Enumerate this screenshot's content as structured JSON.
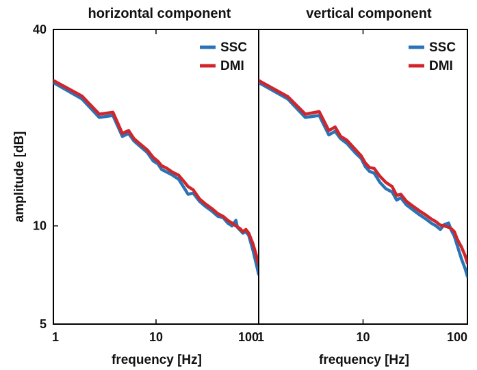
{
  "chart_data": [
    {
      "type": "line",
      "title": "horizontal component",
      "xlabel": "frequency [Hz]",
      "ylabel": "amplitude [dB]",
      "xscale": "log",
      "yscale": "log",
      "xlim": [
        1,
        100
      ],
      "ylim": [
        5,
        40
      ],
      "xticks": [
        1,
        10,
        100
      ],
      "xtick_labels": [
        "1",
        "10",
        "100"
      ],
      "yticks": [
        5,
        10,
        40
      ],
      "ytick_labels": [
        "5",
        "10",
        "40"
      ],
      "legend_position": "top-right",
      "grid": false,
      "series": [
        {
          "name": "SSC",
          "color": "#2a74b5",
          "points": [
            [
              1,
              27.5
            ],
            [
              1.9,
              24.5
            ],
            [
              2.8,
              21.5
            ],
            [
              3.8,
              21.8
            ],
            [
              4.7,
              18.8
            ],
            [
              5.4,
              19.2
            ],
            [
              6.1,
              18.2
            ],
            [
              6.9,
              17.6
            ],
            [
              8.2,
              16.8
            ],
            [
              9.4,
              15.8
            ],
            [
              10.4,
              15.5
            ],
            [
              11.3,
              14.9
            ],
            [
              12.8,
              14.6
            ],
            [
              14.5,
              14.3
            ],
            [
              16.6,
              13.9
            ],
            [
              19,
              13.0
            ],
            [
              20.5,
              12.5
            ],
            [
              23,
              12.6
            ],
            [
              26.5,
              11.9
            ],
            [
              30,
              11.5
            ],
            [
              35,
              11.1
            ],
            [
              40,
              10.7
            ],
            [
              45,
              10.6
            ],
            [
              50,
              10.2
            ],
            [
              55,
              10.0
            ],
            [
              60,
              10.4
            ],
            [
              62,
              9.9
            ],
            [
              66,
              9.7
            ],
            [
              70,
              9.5
            ],
            [
              75,
              9.6
            ],
            [
              80,
              9.35
            ],
            [
              88,
              8.4
            ],
            [
              95,
              7.6
            ],
            [
              100,
              7.1
            ]
          ]
        },
        {
          "name": "DMI",
          "color": "#d0252b",
          "points": [
            [
              1,
              27.9
            ],
            [
              1.9,
              25.0
            ],
            [
              2.8,
              22.0
            ],
            [
              3.8,
              22.3
            ],
            [
              4.7,
              19.2
            ],
            [
              5.4,
              19.6
            ],
            [
              6.1,
              18.5
            ],
            [
              6.9,
              17.9
            ],
            [
              8.2,
              17.1
            ],
            [
              9.4,
              16.2
            ],
            [
              10.4,
              15.8
            ],
            [
              11.3,
              15.3
            ],
            [
              12.8,
              15.0
            ],
            [
              14.5,
              14.6
            ],
            [
              16.6,
              14.3
            ],
            [
              19,
              13.6
            ],
            [
              20.5,
              13.2
            ],
            [
              23,
              12.9
            ],
            [
              26.5,
              12.1
            ],
            [
              30,
              11.7
            ],
            [
              35,
              11.3
            ],
            [
              40,
              10.9
            ],
            [
              45,
              10.7
            ],
            [
              50,
              10.4
            ],
            [
              55,
              10.2
            ],
            [
              60,
              10.0
            ],
            [
              66,
              9.8
            ],
            [
              70,
              9.6
            ],
            [
              75,
              9.75
            ],
            [
              80,
              9.5
            ],
            [
              88,
              8.8
            ],
            [
              95,
              8.1
            ],
            [
              100,
              7.6
            ]
          ]
        }
      ]
    },
    {
      "type": "line",
      "title": "vertical component",
      "xlabel": "frequency [Hz]",
      "ylabel": "",
      "xscale": "log",
      "yscale": "log",
      "xlim": [
        1,
        100
      ],
      "ylim": [
        5,
        40
      ],
      "xticks": [
        1,
        10,
        100
      ],
      "xtick_labels": [
        "1",
        "10",
        "100"
      ],
      "yticks": [],
      "ytick_labels": [],
      "legend_position": "top-right",
      "grid": false,
      "series": [
        {
          "name": "SSC",
          "color": "#2a74b5",
          "points": [
            [
              1,
              27.5
            ],
            [
              1.9,
              24.5
            ],
            [
              2.8,
              21.5
            ],
            [
              3.8,
              21.8
            ],
            [
              4.7,
              19.0
            ],
            [
              5.4,
              19.5
            ],
            [
              6.1,
              18.5
            ],
            [
              7.0,
              17.9
            ],
            [
              8.5,
              16.7
            ],
            [
              9.6,
              16.1
            ],
            [
              10.5,
              15.2
            ],
            [
              11.5,
              14.7
            ],
            [
              12.8,
              14.5
            ],
            [
              14.5,
              13.6
            ],
            [
              16.5,
              13.0
            ],
            [
              19,
              12.7
            ],
            [
              21,
              12.0
            ],
            [
              23,
              12.2
            ],
            [
              26,
              11.6
            ],
            [
              30,
              11.2
            ],
            [
              35,
              10.8
            ],
            [
              40,
              10.5
            ],
            [
              45,
              10.2
            ],
            [
              50,
              10.0
            ],
            [
              55,
              9.75
            ],
            [
              60,
              10.1
            ],
            [
              66,
              10.2
            ],
            [
              70,
              9.7
            ],
            [
              75,
              9.3
            ],
            [
              80,
              8.7
            ],
            [
              88,
              7.9
            ],
            [
              95,
              7.4
            ],
            [
              100,
              7.0
            ]
          ]
        },
        {
          "name": "DMI",
          "color": "#d0252b",
          "points": [
            [
              1,
              27.9
            ],
            [
              1.9,
              24.9
            ],
            [
              2.8,
              22.0
            ],
            [
              3.8,
              22.4
            ],
            [
              4.7,
              19.6
            ],
            [
              5.4,
              20.1
            ],
            [
              6.1,
              18.8
            ],
            [
              7.0,
              18.3
            ],
            [
              8.5,
              17.1
            ],
            [
              9.6,
              16.4
            ],
            [
              10.5,
              15.6
            ],
            [
              11.5,
              15.1
            ],
            [
              12.8,
              15.0
            ],
            [
              14.5,
              14.2
            ],
            [
              16.5,
              13.6
            ],
            [
              19,
              13.2
            ],
            [
              21,
              12.4
            ],
            [
              23,
              12.5
            ],
            [
              26,
              11.9
            ],
            [
              30,
              11.5
            ],
            [
              35,
              11.1
            ],
            [
              40,
              10.8
            ],
            [
              45,
              10.5
            ],
            [
              50,
              10.3
            ],
            [
              55,
              10.05
            ],
            [
              60,
              10.0
            ],
            [
              66,
              9.9
            ],
            [
              70,
              9.8
            ],
            [
              75,
              9.6
            ],
            [
              80,
              9.1
            ],
            [
              88,
              8.6
            ],
            [
              95,
              8.1
            ],
            [
              100,
              7.7
            ]
          ]
        }
      ]
    }
  ]
}
